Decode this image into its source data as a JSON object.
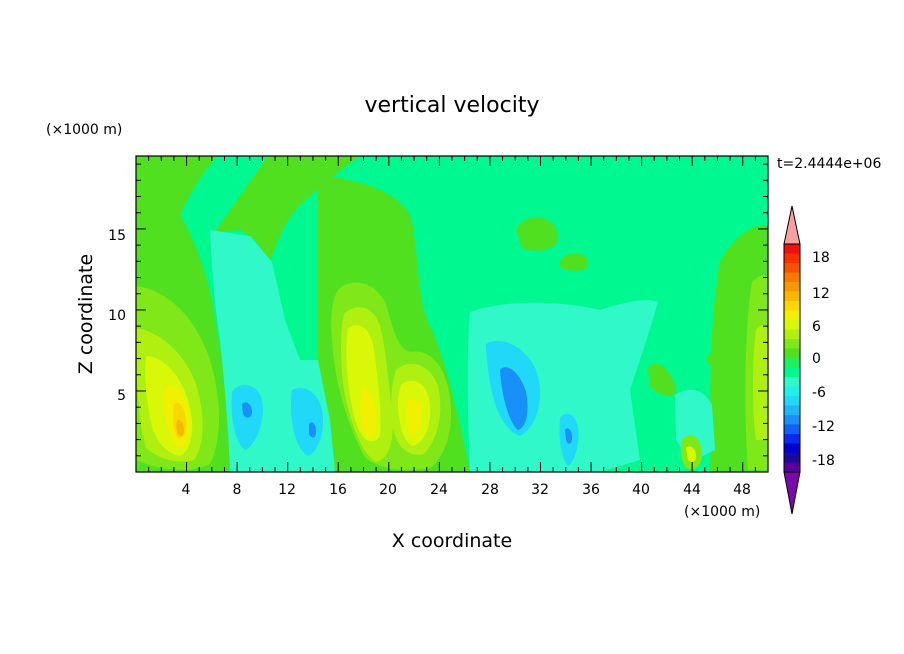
{
  "chart_data": {
    "type": "heatmap",
    "title": "vertical velocity",
    "time_label": "t=2.4444e+06",
    "xlabel": "X coordinate",
    "ylabel": "Z coordinate",
    "x_unit": "(×1000 m)",
    "y_unit": "(×1000 m)",
    "xlim": [
      0,
      50
    ],
    "ylim": [
      0,
      19.5
    ],
    "x_ticks": [
      "4",
      "8",
      "12",
      "16",
      "20",
      "24",
      "28",
      "32",
      "36",
      "40",
      "44",
      "48"
    ],
    "y_ticks": [
      "5",
      "10",
      "15"
    ],
    "colorbar": {
      "levels": [
        -21,
        -19.5,
        -18,
        -16.5,
        -15,
        -13.5,
        -12,
        -10.5,
        -9,
        -7.5,
        -6,
        -4.5,
        -3,
        -1.5,
        0,
        1.5,
        3,
        4.5,
        6,
        7.5,
        9,
        10.5,
        12,
        13.5,
        15,
        16.5,
        18,
        19.5,
        21
      ],
      "tick_labels": [
        "-18",
        "-12",
        "-6",
        "0",
        "6",
        "12",
        "18"
      ],
      "colors": [
        "#7a0aa8",
        "#5a00a0",
        "#1a0a9a",
        "#0000d0",
        "#0a28f0",
        "#1060f5",
        "#1890f8",
        "#20b4f8",
        "#20d8f8",
        "#20f0e8",
        "#30f8c8",
        "#00f890",
        "#20f060",
        "#50e020",
        "#80e818",
        "#b0f010",
        "#d8f808",
        "#f0f000",
        "#f8d800",
        "#f8b800",
        "#f89800",
        "#f87800",
        "#f85000",
        "#f83000",
        "#f01010",
        "#f8a0a0"
      ],
      "background_level_color": "#00f890"
    },
    "features": [
      {
        "kind": "updraft",
        "x": 3.6,
        "z": 3.5,
        "peak": 10.5
      },
      {
        "kind": "updraft",
        "x": 18.2,
        "z": 5.0,
        "peak": 9.0
      },
      {
        "kind": "updraft",
        "x": 21.5,
        "z": 4.0,
        "peak": 8.0
      },
      {
        "kind": "updraft",
        "x": 49.5,
        "z": 5.0,
        "peak": 4.5
      },
      {
        "kind": "updraft",
        "x": 44.2,
        "z": 1.2,
        "peak": 7.0
      },
      {
        "kind": "downdraft",
        "x": 30.2,
        "z": 5.0,
        "peak": -11.0
      },
      {
        "kind": "downdraft",
        "x": 9.0,
        "z": 4.0,
        "peak": -9.0
      },
      {
        "kind": "downdraft",
        "x": 14.0,
        "z": 3.0,
        "peak": -8.0
      },
      {
        "kind": "downdraft",
        "x": 34.0,
        "z": 2.5,
        "peak": -9.0
      }
    ]
  }
}
